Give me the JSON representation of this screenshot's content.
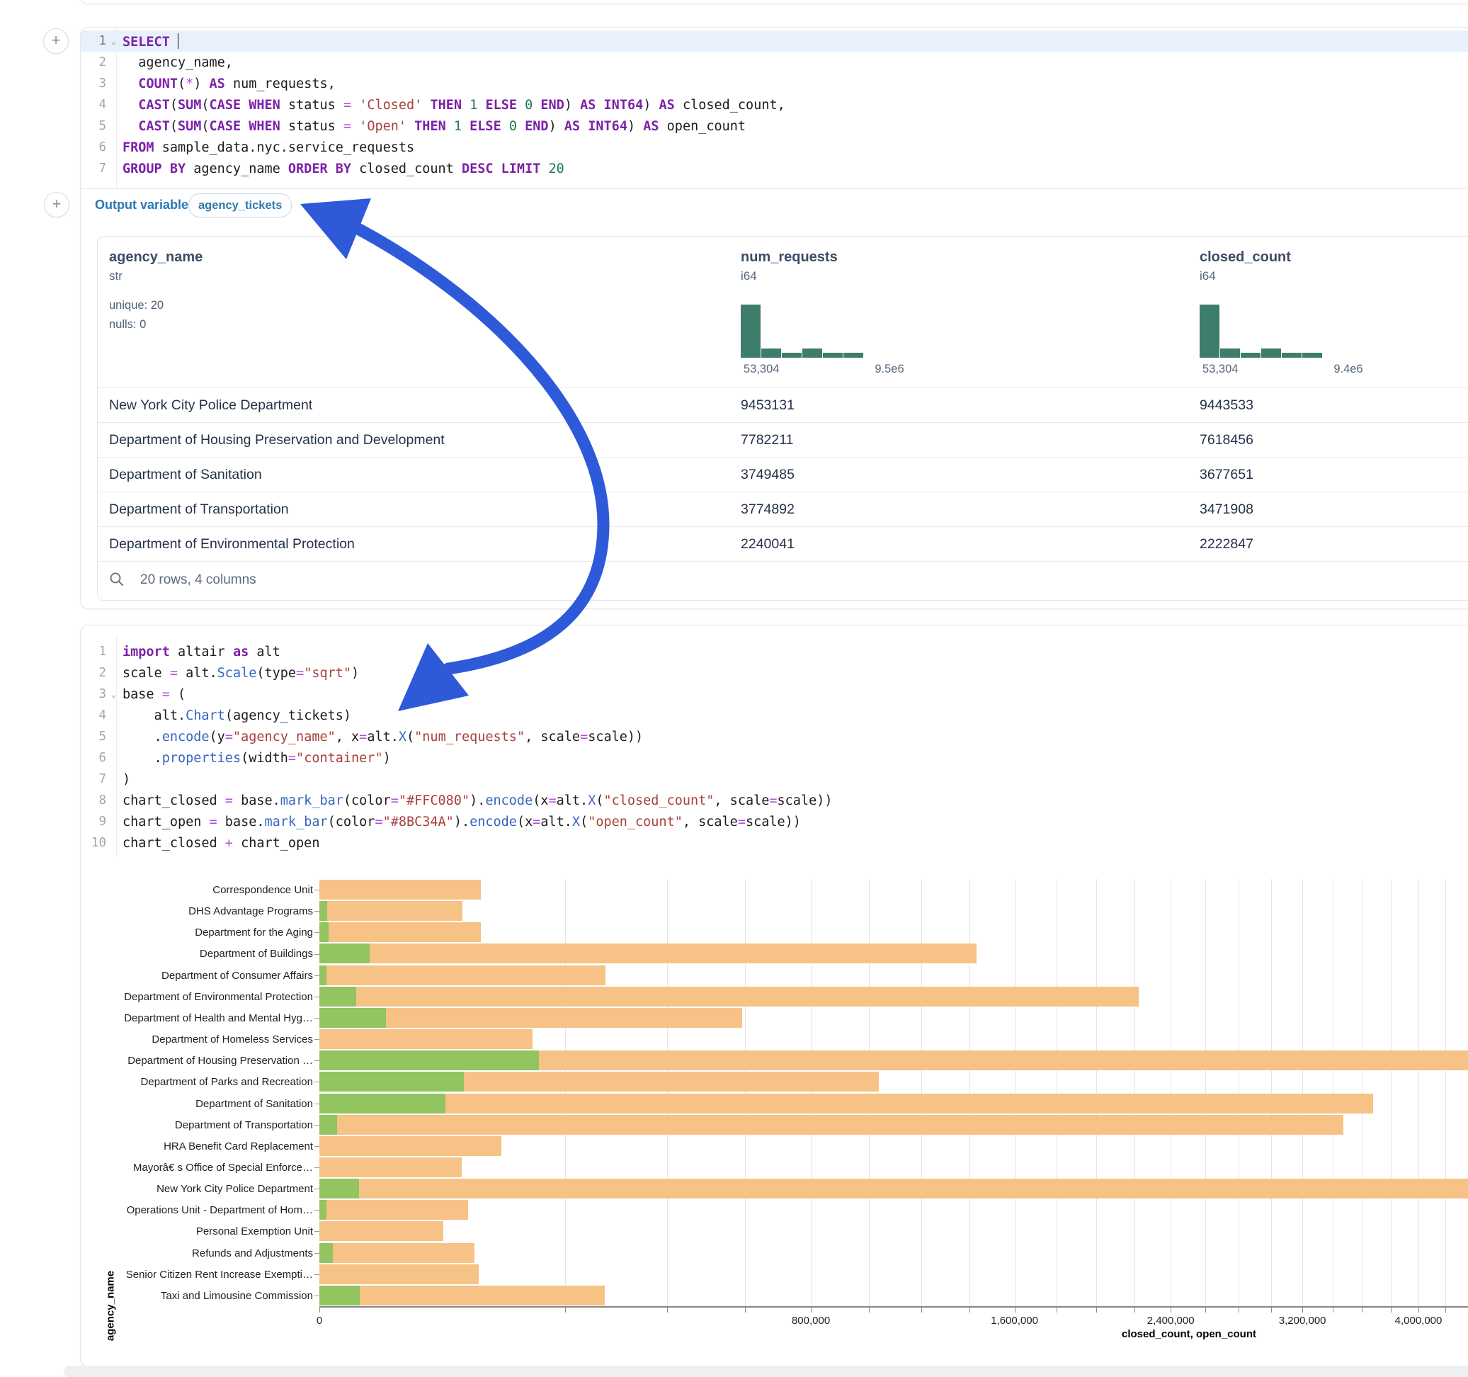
{
  "icons": {
    "add": "plus-icon",
    "fold": "chevron-down-icon",
    "search": "magnifier-icon"
  },
  "buttons": {
    "add_cell": "+"
  },
  "sql_cell": {
    "lines": [
      {
        "num": "1",
        "fold": true,
        "active": true,
        "cursor": true,
        "tokens": [
          [
            "k",
            "SELECT"
          ],
          [
            "p",
            " "
          ]
        ]
      },
      {
        "num": "2",
        "tokens": [
          [
            "p",
            "  agency_name,"
          ]
        ]
      },
      {
        "num": "3",
        "tokens": [
          [
            "p",
            "  "
          ],
          [
            "k",
            "COUNT"
          ],
          [
            "p",
            "("
          ],
          [
            "o",
            "*"
          ],
          [
            "p",
            ") "
          ],
          [
            "k",
            "AS"
          ],
          [
            "p",
            " num_requests,"
          ]
        ]
      },
      {
        "num": "4",
        "tokens": [
          [
            "p",
            "  "
          ],
          [
            "k",
            "CAST"
          ],
          [
            "p",
            "("
          ],
          [
            "k",
            "SUM"
          ],
          [
            "p",
            "("
          ],
          [
            "k",
            "CASE"
          ],
          [
            "p",
            " "
          ],
          [
            "k",
            "WHEN"
          ],
          [
            "p",
            " status "
          ],
          [
            "o",
            "="
          ],
          [
            "p",
            " "
          ],
          [
            "s",
            "'Closed'"
          ],
          [
            "p",
            " "
          ],
          [
            "k",
            "THEN"
          ],
          [
            "p",
            " "
          ],
          [
            "n",
            "1"
          ],
          [
            "p",
            " "
          ],
          [
            "k",
            "ELSE"
          ],
          [
            "p",
            " "
          ],
          [
            "n",
            "0"
          ],
          [
            "p",
            " "
          ],
          [
            "k",
            "END"
          ],
          [
            "p",
            ") "
          ],
          [
            "k",
            "AS"
          ],
          [
            "p",
            " "
          ],
          [
            "k",
            "INT64"
          ],
          [
            "p",
            ") "
          ],
          [
            "k",
            "AS"
          ],
          [
            "p",
            " closed_count,"
          ]
        ]
      },
      {
        "num": "5",
        "tokens": [
          [
            "p",
            "  "
          ],
          [
            "k",
            "CAST"
          ],
          [
            "p",
            "("
          ],
          [
            "k",
            "SUM"
          ],
          [
            "p",
            "("
          ],
          [
            "k",
            "CASE"
          ],
          [
            "p",
            " "
          ],
          [
            "k",
            "WHEN"
          ],
          [
            "p",
            " status "
          ],
          [
            "o",
            "="
          ],
          [
            "p",
            " "
          ],
          [
            "s",
            "'Open'"
          ],
          [
            "p",
            " "
          ],
          [
            "k",
            "THEN"
          ],
          [
            "p",
            " "
          ],
          [
            "n",
            "1"
          ],
          [
            "p",
            " "
          ],
          [
            "k",
            "ELSE"
          ],
          [
            "p",
            " "
          ],
          [
            "n",
            "0"
          ],
          [
            "p",
            " "
          ],
          [
            "k",
            "END"
          ],
          [
            "p",
            ") "
          ],
          [
            "k",
            "AS"
          ],
          [
            "p",
            " "
          ],
          [
            "k",
            "INT64"
          ],
          [
            "p",
            ") "
          ],
          [
            "k",
            "AS"
          ],
          [
            "p",
            " open_count"
          ]
        ]
      },
      {
        "num": "6",
        "tokens": [
          [
            "k",
            "FROM"
          ],
          [
            "p",
            " sample_data.nyc.service_requests"
          ]
        ]
      },
      {
        "num": "7",
        "tokens": [
          [
            "k",
            "GROUP BY"
          ],
          [
            "p",
            " agency_name "
          ],
          [
            "k",
            "ORDER BY"
          ],
          [
            "p",
            " closed_count "
          ],
          [
            "k",
            "DESC"
          ],
          [
            "p",
            " "
          ],
          [
            "k",
            "LIMIT"
          ],
          [
            "p",
            " "
          ],
          [
            "n",
            "20"
          ]
        ]
      }
    ]
  },
  "output_variable": {
    "label": "Output variable:",
    "value": "agency_tickets"
  },
  "table": {
    "columns": [
      {
        "name": "agency_name",
        "type": "str",
        "meta": [
          "unique: 20",
          "nulls: 0"
        ],
        "x": 16
      },
      {
        "name": "num_requests",
        "type": "i64",
        "x": 908,
        "hist": {
          "bars": [
            75,
            13,
            7,
            13,
            7,
            7
          ],
          "min_label": "53,304",
          "max_label": "9.5e6"
        }
      },
      {
        "name": "closed_count",
        "type": "i64",
        "x": 1556,
        "hist": {
          "bars": [
            75,
            13,
            7,
            13,
            7,
            7
          ],
          "min_label": "53,304",
          "max_label": "9.4e6"
        }
      }
    ],
    "rows": [
      [
        "New York City Police Department",
        "9453131",
        "9443533"
      ],
      [
        "Department of Housing Preservation and Development",
        "7782211",
        "7618456"
      ],
      [
        "Department of Sanitation",
        "3749485",
        "3677651"
      ],
      [
        "Department of Transportation",
        "3774892",
        "3471908"
      ],
      [
        "Department of Environmental Protection",
        "2240041",
        "2222847"
      ]
    ],
    "footer": "20 rows, 4 columns"
  },
  "python_cell": {
    "lines": [
      {
        "num": "1",
        "tokens": [
          [
            "k",
            "import"
          ],
          [
            "p",
            " altair "
          ],
          [
            "k",
            "as"
          ],
          [
            "p",
            " alt"
          ]
        ]
      },
      {
        "num": "2",
        "tokens": [
          [
            "p",
            "scale "
          ],
          [
            "o",
            "="
          ],
          [
            "p",
            " alt."
          ],
          [
            "f",
            "Scale"
          ],
          [
            "p",
            "(type"
          ],
          [
            "o",
            "="
          ],
          [
            "s",
            "\"sqrt\""
          ],
          [
            "p",
            ")"
          ]
        ]
      },
      {
        "num": "3",
        "fold": true,
        "tokens": [
          [
            "p",
            "base "
          ],
          [
            "o",
            "="
          ],
          [
            "p",
            " ("
          ]
        ]
      },
      {
        "num": "4",
        "tokens": [
          [
            "p",
            "    alt."
          ],
          [
            "f",
            "Chart"
          ],
          [
            "p",
            "(agency_tickets)"
          ]
        ]
      },
      {
        "num": "5",
        "tokens": [
          [
            "p",
            "    ."
          ],
          [
            "f",
            "encode"
          ],
          [
            "p",
            "(y"
          ],
          [
            "o",
            "="
          ],
          [
            "s",
            "\"agency_name\""
          ],
          [
            "p",
            ", x"
          ],
          [
            "o",
            "="
          ],
          [
            "p",
            "alt."
          ],
          [
            "f",
            "X"
          ],
          [
            "p",
            "("
          ],
          [
            "s",
            "\"num_requests\""
          ],
          [
            "p",
            ", scale"
          ],
          [
            "o",
            "="
          ],
          [
            "p",
            "scale))"
          ]
        ]
      },
      {
        "num": "6",
        "tokens": [
          [
            "p",
            "    ."
          ],
          [
            "f",
            "properties"
          ],
          [
            "p",
            "(width"
          ],
          [
            "o",
            "="
          ],
          [
            "s",
            "\"container\""
          ],
          [
            "p",
            ")"
          ]
        ]
      },
      {
        "num": "7",
        "tokens": [
          [
            "p",
            ")"
          ]
        ]
      },
      {
        "num": "8",
        "tokens": [
          [
            "p",
            "chart_closed "
          ],
          [
            "o",
            "="
          ],
          [
            "p",
            " base."
          ],
          [
            "f",
            "mark_bar"
          ],
          [
            "p",
            "(color"
          ],
          [
            "o",
            "="
          ],
          [
            "s",
            "\"#FFC080\""
          ],
          [
            "p",
            ")."
          ],
          [
            "f",
            "encode"
          ],
          [
            "p",
            "(x"
          ],
          [
            "o",
            "="
          ],
          [
            "p",
            "alt."
          ],
          [
            "f",
            "X"
          ],
          [
            "p",
            "("
          ],
          [
            "s",
            "\"closed_count\""
          ],
          [
            "p",
            ", scale"
          ],
          [
            "o",
            "="
          ],
          [
            "p",
            "scale))"
          ]
        ]
      },
      {
        "num": "9",
        "tokens": [
          [
            "p",
            "chart_open "
          ],
          [
            "o",
            "="
          ],
          [
            "p",
            " base."
          ],
          [
            "f",
            "mark_bar"
          ],
          [
            "p",
            "(color"
          ],
          [
            "o",
            "="
          ],
          [
            "s",
            "\"#8BC34A\""
          ],
          [
            "p",
            ")."
          ],
          [
            "f",
            "encode"
          ],
          [
            "p",
            "(x"
          ],
          [
            "o",
            "="
          ],
          [
            "p",
            "alt."
          ],
          [
            "f",
            "X"
          ],
          [
            "p",
            "("
          ],
          [
            "s",
            "\"open_count\""
          ],
          [
            "p",
            ", scale"
          ],
          [
            "o",
            "="
          ],
          [
            "p",
            "scale))"
          ]
        ]
      },
      {
        "num": "10",
        "tokens": [
          [
            "p",
            "chart_closed "
          ],
          [
            "o",
            "+"
          ],
          [
            "p",
            " chart_open"
          ]
        ]
      }
    ]
  },
  "chart_data": {
    "type": "bar",
    "orientation": "horizontal",
    "scale_type": "sqrt",
    "categories": [
      "Correspondence Unit",
      "DHS Advantage Programs",
      "Department for the Aging",
      "Department of Buildings",
      "Department of Consumer Affairs",
      "Department of Environmental Protection",
      "Department of Health and Mental Hyg…",
      "Department of Homeless Services",
      "Department of Housing Preservation …",
      "Department of Parks and Recreation",
      "Department of Sanitation",
      "Department of Transportation",
      "HRA Benefit Card Replacement",
      "Mayorâ€ s Office of Special Enforce…",
      "New York City Police Department",
      "Operations Unit - Department of Hom…",
      "Personal Exemption Unit",
      "Refunds and Adjustments",
      "Senior Citizen Rent Increase Exempti…",
      "Taxi and Limousine Commission"
    ],
    "series": [
      {
        "name": "closed_count",
        "color": "#F7C286",
        "values": [
          86000,
          68000,
          86000,
          1430000,
          271000,
          2222847,
          592000,
          150000,
          7618456,
          1036000,
          3677651,
          3471908,
          110000,
          67000,
          9443533,
          73000,
          51000,
          80000,
          84000,
          270000
        ]
      },
      {
        "name": "open_count",
        "color": "#92C45F",
        "values": [
          0,
          200,
          300,
          8400,
          150,
          4500,
          14700,
          0,
          159600,
          69000,
          52600,
          1000,
          0,
          0,
          5200,
          170,
          0,
          600,
          0,
          5400
        ]
      }
    ],
    "xlabel": "closed_count, open_count",
    "ylabel": "agency_name",
    "x_ticks": [
      {
        "v": 0,
        "label": "0"
      },
      {
        "v": 800000,
        "label": "800,000"
      },
      {
        "v": 1600000,
        "label": "1,600,000"
      },
      {
        "v": 2400000,
        "label": "2,400,000"
      },
      {
        "v": 3200000,
        "label": "3,200,000"
      },
      {
        "v": 4000000,
        "label": "4,000,000"
      }
    ],
    "x_minor_step": 200000,
    "x_minor_max": 4400000,
    "grid": true,
    "legend": "none"
  },
  "colors": {
    "histogram": "#3E7C6B",
    "bar_closed": "#F7C286",
    "bar_open": "#92C45F",
    "arrow": "#2E59D9"
  }
}
